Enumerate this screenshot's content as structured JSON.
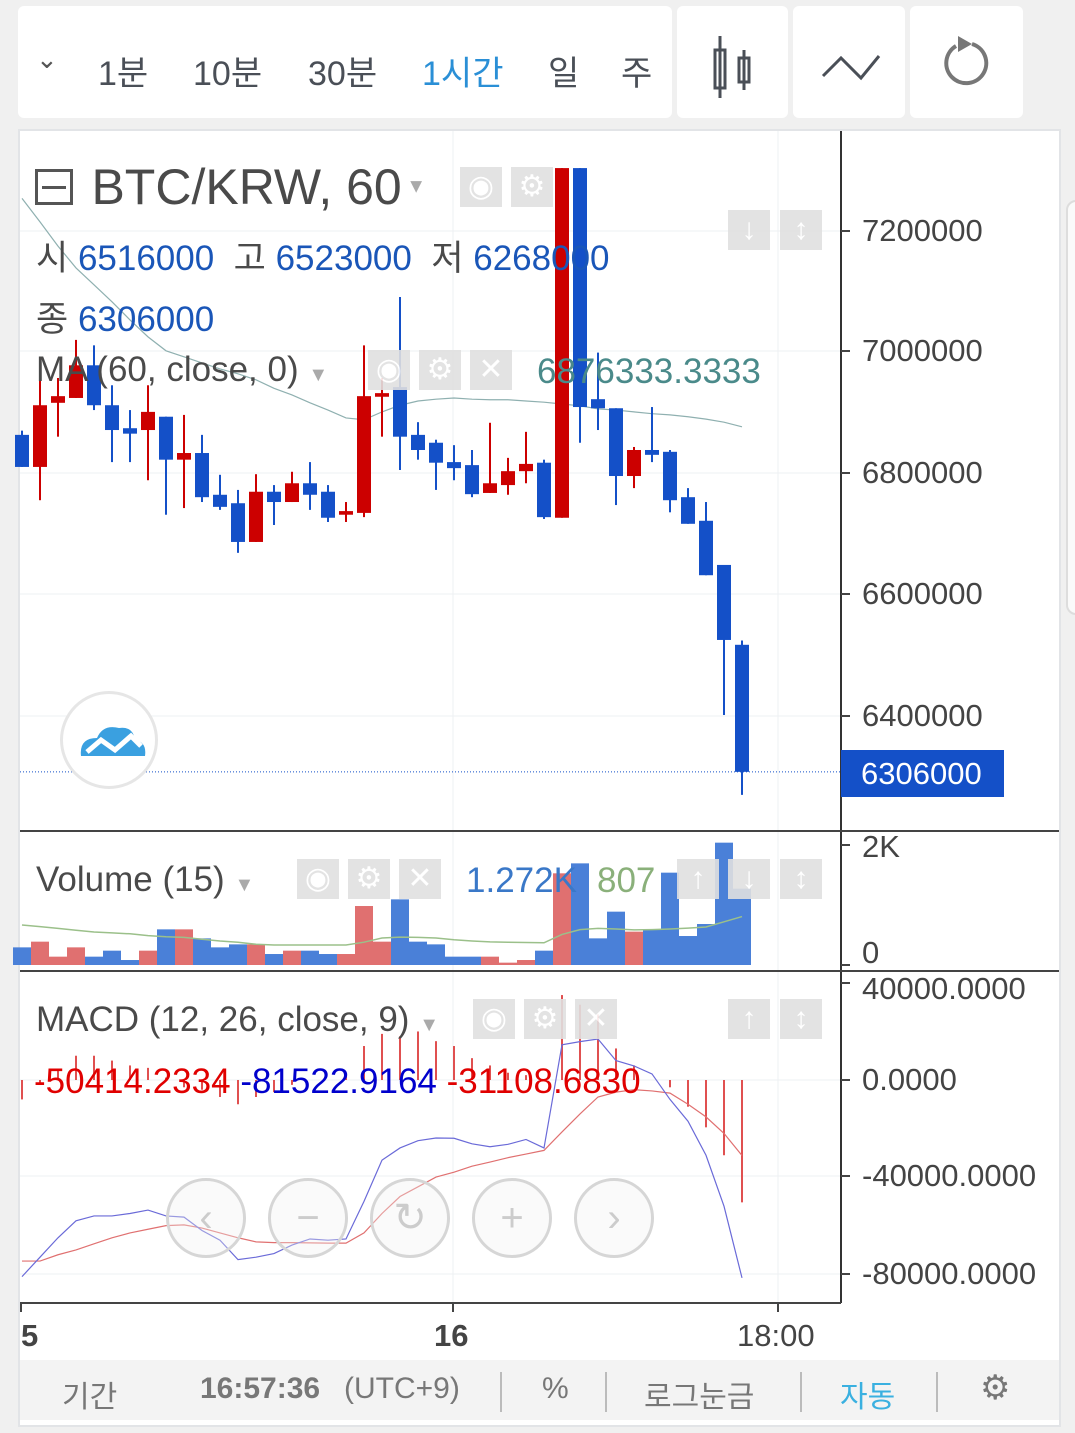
{
  "toolbar": {
    "timeframes": [
      "1분",
      "10분",
      "30분",
      "1시간",
      "일",
      "주"
    ],
    "active_timeframe": "1시간",
    "accent": "#2a8fd6",
    "icons": [
      "chevron-down-icon",
      "candlestick-icon",
      "line-chart-icon",
      "refresh-icon"
    ]
  },
  "legend": {
    "symbol": "BTC/KRW, 60",
    "open_label": "시",
    "open": "6516000",
    "high_label": "고",
    "high": "6523000",
    "low_label": "저",
    "low": "6268000",
    "close_label": "종",
    "close": "6306000",
    "ma_title": "MA (60, close, 0)",
    "ma_value": "6876333.3333",
    "volume_title": "Volume (15)",
    "volume_value": "1.272K",
    "volume_ma_value": "807",
    "macd_title": "MACD (12, 26, close, 9)",
    "macd_hist_value": "-50414.2334",
    "macd_value": "-81522.9164",
    "macd_signal_value": "-31108.6830"
  },
  "price_axis": [
    "7200000",
    "7000000",
    "6800000",
    "6600000",
    "6400000"
  ],
  "last_price_label": "6306000",
  "volume_axis": [
    "2K",
    "0"
  ],
  "macd_axis": [
    "40000.0000",
    "0.0000",
    "-40000.0000",
    "-80000.0000"
  ],
  "time_axis": [
    "5",
    "16",
    "18:00"
  ],
  "bottom_bar": {
    "period": "기간",
    "time": "16:57:36",
    "timezone": "(UTC+9)",
    "percent": "%",
    "log": "로그눈금",
    "auto": "자동"
  },
  "colors": {
    "up": "#cc0000",
    "down": "#1450c8",
    "last_price_bg": "#1450c8",
    "ma": "#8fb0b0",
    "vol_up": "#e07070",
    "vol_down": "#4a80d8",
    "vol_ma": "#9bc08a",
    "macd": "#6a6ad8",
    "signal": "#e07070",
    "hist": "#e05050"
  },
  "chart_data": [
    {
      "type": "candlestick",
      "title": "BTC/KRW, 60",
      "ylim": [
        6200000,
        7350000
      ],
      "y_ticks": [
        6400000,
        6600000,
        6800000,
        7000000,
        7200000
      ],
      "x_ticks": [
        "5",
        "16",
        "18:00"
      ],
      "grid": true,
      "ohlc": [
        [
          6863000,
          6870000,
          6810000,
          6810000
        ],
        [
          6810000,
          6962000,
          6755000,
          6912000
        ],
        [
          6916000,
          6957000,
          6860000,
          6927000
        ],
        [
          6924000,
          7020000,
          6924000,
          6978000
        ],
        [
          6978000,
          7011000,
          6904000,
          6912000
        ],
        [
          6912000,
          6945000,
          6818000,
          6871000
        ],
        [
          6874000,
          6904000,
          6818000,
          6865000
        ],
        [
          6871000,
          6945000,
          6788000,
          6901000
        ],
        [
          6893000,
          6893000,
          6731000,
          6822000
        ],
        [
          6822000,
          6896000,
          6742000,
          6833000
        ],
        [
          6833000,
          6863000,
          6752000,
          6760000
        ],
        [
          6764000,
          6797000,
          6739000,
          6744000
        ],
        [
          6750000,
          6772000,
          6668000,
          6686000
        ],
        [
          6686000,
          6798000,
          6686000,
          6769000
        ],
        [
          6769000,
          6780000,
          6714000,
          6752000
        ],
        [
          6752000,
          6802000,
          6752000,
          6783000
        ],
        [
          6783000,
          6818000,
          6739000,
          6764000
        ],
        [
          6769000,
          6780000,
          6719000,
          6726000
        ],
        [
          6731000,
          6752000,
          6719000,
          6737000
        ],
        [
          6734000,
          7011000,
          6727000,
          6927000
        ],
        [
          6926000,
          6957000,
          6860000,
          6932000
        ],
        [
          6942000,
          7091000,
          6805000,
          6860000
        ],
        [
          6863000,
          6884000,
          6822000,
          6838000
        ],
        [
          6850000,
          6855000,
          6772000,
          6817000
        ],
        [
          6818000,
          6846000,
          6788000,
          6808000
        ],
        [
          6813000,
          6838000,
          6760000,
          6765000
        ],
        [
          6767000,
          6883000,
          6767000,
          6783000
        ],
        [
          6780000,
          6825000,
          6764000,
          6803000
        ],
        [
          6803000,
          6868000,
          6783000,
          6815000
        ],
        [
          6817000,
          6822000,
          6724000,
          6727000
        ],
        [
          6726000,
          7304000,
          6726000,
          7304000
        ],
        [
          7304000,
          7304000,
          6850000,
          6909000
        ],
        [
          6922000,
          6999000,
          6871000,
          6907000
        ],
        [
          6907000,
          6907000,
          6747000,
          6795000
        ],
        [
          6795000,
          6843000,
          6775000,
          6838000
        ],
        [
          6838000,
          6909000,
          6818000,
          6830000
        ],
        [
          6835000,
          6838000,
          6735000,
          6755000
        ],
        [
          6760000,
          6775000,
          6716000,
          6716000
        ],
        [
          6721000,
          6752000,
          6631000,
          6631000
        ],
        [
          6648000,
          6648000,
          6400000,
          6524000
        ],
        [
          6516000,
          6523000,
          6268000,
          6306000
        ]
      ],
      "ma60": [
        7254000,
        7215000,
        7175000,
        7139000,
        7111000,
        7083000,
        7053000,
        7025000,
        7002000,
        6992000,
        6982000,
        6972000,
        6964000,
        6954000,
        6940000,
        6929000,
        6916000,
        6904000,
        6891000,
        6888000,
        6901000,
        6912000,
        6919000,
        6922000,
        6924000,
        6922000,
        6921000,
        6921000,
        6919000,
        6917000,
        6914000,
        6911000,
        6906000,
        6904000,
        6901000,
        6898000,
        6896000,
        6893000,
        6889000,
        6884000,
        6876333.3333
      ]
    },
    {
      "type": "bar",
      "title": "Volume (15)",
      "ylim": [
        0,
        2000
      ],
      "values": [
        294,
        389,
        139,
        294,
        139,
        239,
        83,
        239,
        594,
        594,
        444,
        294,
        344,
        344,
        183,
        239,
        239,
        183,
        183,
        983,
        389,
        1094,
        389,
        344,
        139,
        139,
        139,
        39,
        83,
        239,
        1528,
        1694,
        444,
        889,
        556,
        594,
        1539,
        483,
        683,
        2039,
        1272
      ],
      "ma15": [
        667,
        640,
        610,
        580,
        550,
        535,
        520,
        490,
        470,
        460,
        430,
        400,
        380,
        345,
        333,
        333,
        333,
        333,
        333,
        380,
        450,
        465,
        460,
        450,
        420,
        400,
        385,
        380,
        375,
        370,
        510,
        590,
        610,
        600,
        585,
        590,
        600,
        615,
        633,
        720,
        807
      ]
    },
    {
      "type": "line",
      "title": "MACD (12, 26, close, 9)",
      "ylim": [
        -90000,
        45000
      ],
      "macd": [
        -81000,
        -73000,
        -65000,
        -58000,
        -56000,
        -56000,
        -55000,
        -53600,
        -56000,
        -56500,
        -62000,
        -66000,
        -74000,
        -73000,
        -71500,
        -68000,
        -65500,
        -66000,
        -65500,
        -50000,
        -33000,
        -28000,
        -25000,
        -23900,
        -24000,
        -26300,
        -27500,
        -26500,
        -24500,
        -28000,
        14500,
        15800,
        16900,
        8000,
        5800,
        2500,
        -8000,
        -17000,
        -31000,
        -52000,
        -81522.9164
      ],
      "signal": [
        -74600,
        -74600,
        -72000,
        -70000,
        -67500,
        -65000,
        -63000,
        -61500,
        -60000,
        -59700,
        -61000,
        -63000,
        -65000,
        -66700,
        -67000,
        -67000,
        -67100,
        -67200,
        -67200,
        -63000,
        -55000,
        -48000,
        -44000,
        -40000,
        -38000,
        -35500,
        -33800,
        -32000,
        -30500,
        -29000,
        -21400,
        -14000,
        -7000,
        -5000,
        -4000,
        -4500,
        -5400,
        -10000,
        -15200,
        -22000,
        -31108.683
      ],
      "histogram": [
        -8000,
        -2000,
        4000,
        10000,
        10000,
        8000,
        6000,
        5000,
        1000,
        -3000,
        -4000,
        -7000,
        -10000,
        -7000,
        -5000,
        -2000,
        0,
        0,
        2000,
        14000,
        19000,
        18000,
        20000,
        16000,
        14000,
        9000,
        6000,
        3000,
        2000,
        0,
        35000,
        31000,
        27000,
        13000,
        6000,
        0,
        -3000,
        -11000,
        -19500,
        -31000,
        -50414.2334
      ]
    }
  ]
}
